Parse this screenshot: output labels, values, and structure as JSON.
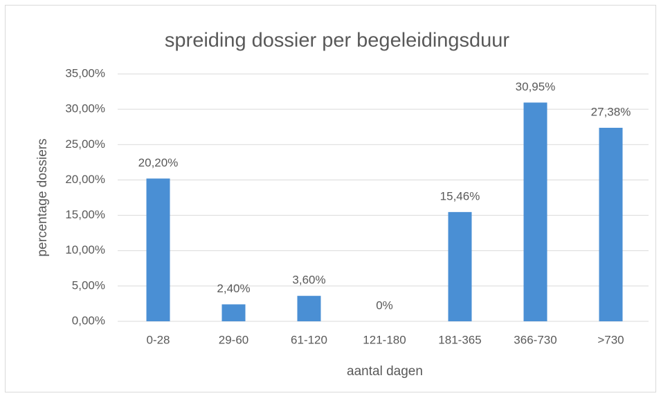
{
  "chart_data": {
    "type": "bar",
    "title": "spreiding dossier per begeleidingsduur",
    "x_label": "aantal dagen",
    "y_label": "percentage dossiers",
    "categories": [
      "0-28",
      "29-60",
      "61-120",
      "121-180",
      "181-365",
      "366-730",
      ">730"
    ],
    "values": [
      20.2,
      2.4,
      3.6,
      0,
      15.46,
      30.95,
      27.38
    ],
    "value_labels": [
      "20,20%",
      "2,40%",
      "3,60%",
      "0%",
      "15,46%",
      "30,95%",
      "27,38%"
    ],
    "color": "#4a8fd4",
    "ylim": [
      0,
      35
    ],
    "yticks": [
      {
        "value": 0,
        "label": "0,00%"
      },
      {
        "value": 5,
        "label": "5,00%"
      },
      {
        "value": 10,
        "label": "10,00%"
      },
      {
        "value": 15,
        "label": "15,00%"
      },
      {
        "value": 20,
        "label": "20,00%"
      },
      {
        "value": 25,
        "label": "25,00%"
      },
      {
        "value": 30,
        "label": "30,00%"
      },
      {
        "value": 35,
        "label": "35,00%"
      }
    ],
    "grid": true
  }
}
